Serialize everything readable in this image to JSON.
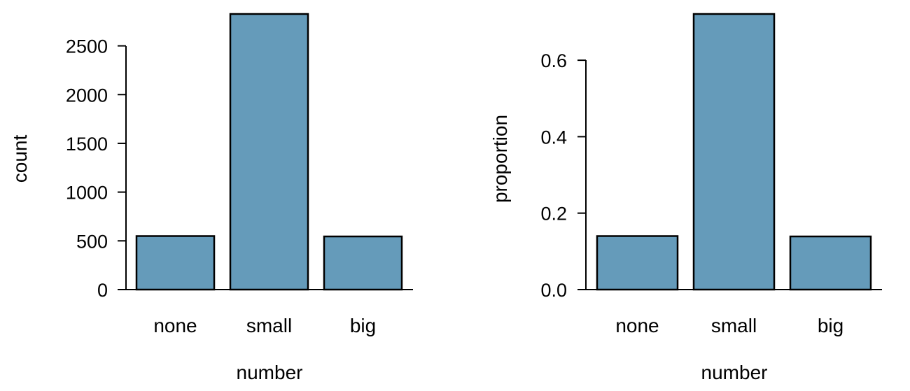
{
  "bar_color": "#659bba",
  "chart_data": [
    {
      "type": "bar",
      "categories": [
        "none",
        "small",
        "big"
      ],
      "values": [
        549,
        2827,
        545
      ],
      "xlabel": "number",
      "ylabel": "count",
      "ylim": [
        0,
        2827
      ],
      "yticks": [
        0,
        500,
        1000,
        1500,
        2000,
        2500
      ],
      "ytick_labels": [
        "0",
        "500",
        "1000",
        "1500",
        "2000",
        "2500"
      ]
    },
    {
      "type": "bar",
      "categories": [
        "none",
        "small",
        "big"
      ],
      "values": [
        0.14,
        0.721,
        0.139
      ],
      "xlabel": "number",
      "ylabel": "proportion",
      "ylim": [
        0,
        0.721
      ],
      "yticks": [
        0.0,
        0.2,
        0.4,
        0.6
      ],
      "ytick_labels": [
        "0.0",
        "0.2",
        "0.4",
        "0.6"
      ]
    }
  ]
}
